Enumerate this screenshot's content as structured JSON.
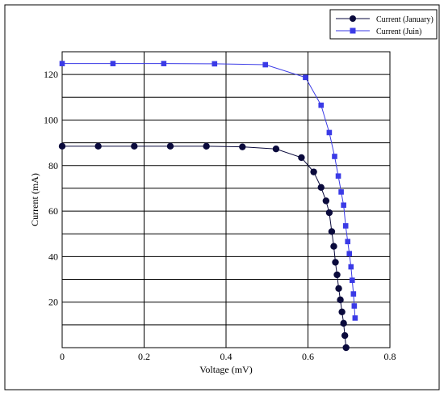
{
  "chart_data": {
    "type": "line",
    "title": "",
    "xlabel": "Voltage (mV)",
    "ylabel": "Current (mA)",
    "xlim": [
      0,
      0.8
    ],
    "ylim": [
      0,
      130
    ],
    "x_ticks": [
      0,
      0.2,
      0.4,
      0.6,
      0.8
    ],
    "x_tick_labels": [
      "0",
      "0.2",
      "0.4",
      "0.6",
      "0.8"
    ],
    "y_grid": [
      10,
      20,
      30,
      40,
      50,
      60,
      70,
      80,
      90,
      100,
      110,
      120,
      130
    ],
    "y_ticks": [
      20,
      40,
      60,
      80,
      100,
      120
    ],
    "y_tick_labels": [
      "20",
      "40",
      "60",
      "80",
      "100",
      "120"
    ],
    "grid": true,
    "legend_position": "top-right",
    "series": [
      {
        "name": "Current (January)",
        "color": "#0a0a3c",
        "marker": "circle",
        "x": [
          0,
          0.088,
          0.176,
          0.264,
          0.352,
          0.44,
          0.522,
          0.584,
          0.614,
          0.632,
          0.644,
          0.652,
          0.658,
          0.663,
          0.667,
          0.671,
          0.675,
          0.679,
          0.683,
          0.687,
          0.69,
          0.693
        ],
        "y": [
          88.5,
          88.5,
          88.5,
          88.5,
          88.5,
          88.2,
          87.3,
          83.5,
          77.2,
          70.4,
          64.5,
          59.3,
          51.0,
          44.5,
          37.5,
          32.0,
          26.0,
          21.0,
          15.7,
          10.7,
          5.3,
          0
        ]
      },
      {
        "name": "Current (Juin)",
        "color": "#3a3ae6",
        "marker": "square",
        "x": [
          0,
          0.124,
          0.248,
          0.372,
          0.496,
          0.594,
          0.632,
          0.652,
          0.665,
          0.674,
          0.681,
          0.687,
          0.692,
          0.697,
          0.701,
          0.705,
          0.708,
          0.711,
          0.713,
          0.715
        ],
        "y": [
          124.8,
          124.8,
          124.8,
          124.7,
          124.3,
          118.7,
          106.5,
          94.5,
          84.0,
          75.4,
          68.4,
          62.6,
          53.5,
          46.6,
          41.3,
          35.5,
          29.6,
          23.6,
          18.3,
          13.0
        ]
      }
    ]
  }
}
